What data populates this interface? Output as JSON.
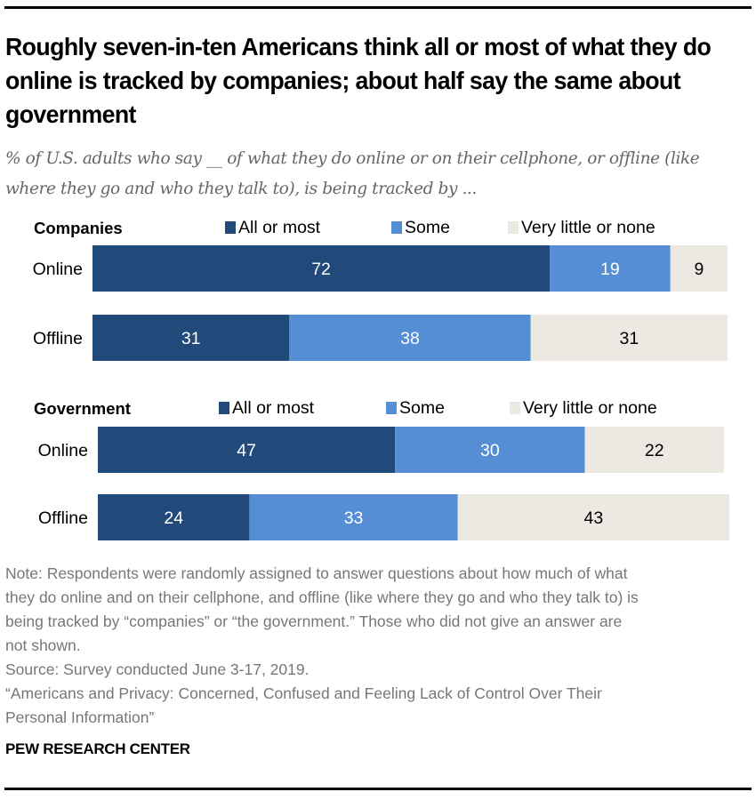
{
  "title": "Roughly seven-in-ten Americans think all or most of what they do online is tracked by companies; about half say the same about government",
  "subtitle": "% of U.S. adults who say __ of what they do online or on their cellphone, or offline (like where they go and who they talk to), is being tracked by ...",
  "colors": {
    "all_or_most": "#214a7b",
    "some": "#558ed5",
    "very_little_or_none": "#ece9e3",
    "label_dark": "#000000",
    "label_light": "#ffffff"
  },
  "chart_data": {
    "type": "bar",
    "orientation": "horizontal",
    "stacked": true,
    "title": "Roughly seven-in-ten Americans think all or most of what they do online is tracked by companies; about half say the same about government",
    "legend": [
      "All or most",
      "Some",
      "Very little or none"
    ],
    "legend_placement": "top",
    "xlim": [
      0,
      100
    ],
    "grid": false,
    "panels": [
      {
        "name": "Companies",
        "categories": [
          "Online",
          "Offline"
        ],
        "series": [
          {
            "name": "All or most",
            "values": [
              72,
              31
            ]
          },
          {
            "name": "Some",
            "values": [
              19,
              38
            ]
          },
          {
            "name": "Very little or none",
            "values": [
              9,
              31
            ]
          }
        ]
      },
      {
        "name": "Government",
        "categories": [
          "Online",
          "Offline"
        ],
        "series": [
          {
            "name": "All or most",
            "values": [
              47,
              24
            ]
          },
          {
            "name": "Some",
            "values": [
              30,
              33
            ]
          },
          {
            "name": "Very little or none",
            "values": [
              22,
              43
            ]
          }
        ]
      }
    ]
  },
  "notes": [
    "Note: Respondents were randomly assigned to answer questions about how much of what",
    "they do online and on their cellphone, and offline (like where they go and who they talk to) is",
    "being tracked by “companies” or “the government.” Those who did not give an answer are",
    "not shown.",
    "Source: Survey conducted June 3-17, 2019.",
    "“Americans and Privacy: Concerned, Confused and Feeling Lack of Control Over Their",
    "Personal Information”"
  ],
  "brand": "PEW RESEARCH CENTER"
}
